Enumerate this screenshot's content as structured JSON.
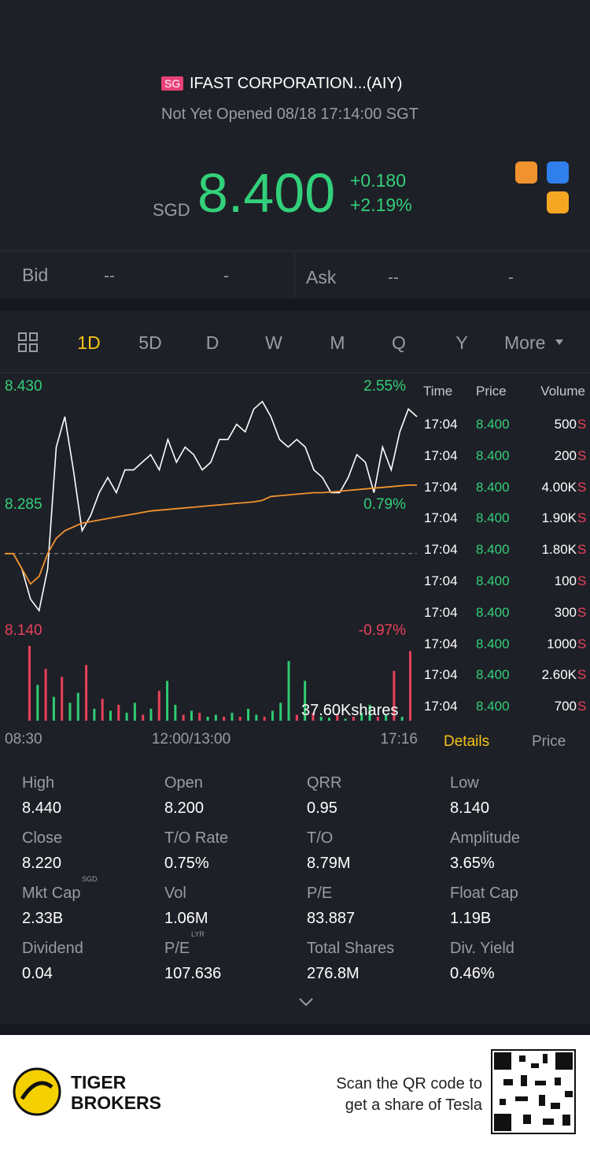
{
  "header": {
    "badge": "SG",
    "name": "IFAST CORPORATION...(AIY)",
    "status": "Not Yet Opened 08/18 17:14:00 SGT"
  },
  "quote": {
    "currency": "SGD",
    "price": "8.400",
    "change": "+0.180",
    "change_pct": "+2.19%"
  },
  "bid_ask": {
    "bid": {
      "label": "Bid",
      "price": "--",
      "size": "-"
    },
    "ask": {
      "label": "Ask",
      "price": "--",
      "size": "-"
    }
  },
  "period_tabs": [
    "1D",
    "5D",
    "D",
    "W",
    "M",
    "Q",
    "Y",
    "More"
  ],
  "chart_data": {
    "type": "line",
    "ylim": [
      8.14,
      8.43
    ],
    "yticks": [
      {
        "value": 8.43,
        "label": "8.430"
      },
      {
        "value": 8.285,
        "label": "8.285"
      },
      {
        "value": 8.14,
        "label": "8.140"
      }
    ],
    "y2lim": [
      -0.97,
      2.55
    ],
    "y2ticks": [
      {
        "value": 2.55,
        "label": "2.55%"
      },
      {
        "value": 0.79,
        "label": "0.79%"
      },
      {
        "value": -0.97,
        "label": "-0.97%"
      }
    ],
    "baseline": 8.22,
    "x_labels": [
      "08:30",
      "12:00/13:00",
      "17:16"
    ],
    "series": [
      {
        "color": "#ffffff",
        "values": [
          8.22,
          8.22,
          8.2,
          8.16,
          8.145,
          8.2,
          8.36,
          8.4,
          8.33,
          8.25,
          8.27,
          8.3,
          8.32,
          8.3,
          8.33,
          8.33,
          8.34,
          8.35,
          8.33,
          8.37,
          8.34,
          8.36,
          8.35,
          8.33,
          8.34,
          8.37,
          8.37,
          8.39,
          8.38,
          8.41,
          8.42,
          8.4,
          8.37,
          8.36,
          8.37,
          8.36,
          8.33,
          8.32,
          8.3,
          8.3,
          8.32,
          8.35,
          8.34,
          8.3,
          8.36,
          8.33,
          8.38,
          8.41,
          8.4
        ]
      },
      {
        "color": "#f0922e",
        "values": [
          8.22,
          8.22,
          8.2,
          8.18,
          8.19,
          8.22,
          8.24,
          8.25,
          8.255,
          8.26,
          8.262,
          8.264,
          8.266,
          8.268,
          8.27,
          8.272,
          8.274,
          8.276,
          8.277,
          8.278,
          8.279,
          8.28,
          8.281,
          8.282,
          8.283,
          8.284,
          8.285,
          8.286,
          8.287,
          8.288,
          8.29,
          8.295,
          8.296,
          8.297,
          8.298,
          8.299,
          8.3,
          8.3,
          8.301,
          8.302,
          8.303,
          8.304,
          8.305,
          8.306,
          8.307,
          8.308,
          8.309,
          8.31,
          8.31
        ]
      }
    ],
    "volume": {
      "max": {
        "value": 37600,
        "label": "37.60Kshares"
      },
      "values": [
        37600,
        18000,
        26000,
        12000,
        22000,
        9000,
        14000,
        28000,
        6000,
        11000,
        5000,
        8000,
        4000,
        9000,
        3000,
        6000,
        15000,
        20000,
        8000,
        3000,
        5000,
        4000,
        2000,
        3000,
        2000,
        4000,
        2000,
        6000,
        3000,
        2000,
        5000,
        9000,
        30000,
        3000,
        20000,
        4000,
        2000,
        1500,
        3000,
        1000,
        2000,
        4000,
        8000,
        2000,
        3000,
        25000,
        2000,
        35000
      ],
      "colors": [
        "#e8415a",
        "#2ecc71",
        "#e8415a",
        "#2ecc71",
        "#e8415a",
        "#2ecc71",
        "#2ecc71",
        "#e8415a",
        "#2ecc71",
        "#e8415a",
        "#2ecc71",
        "#e8415a",
        "#2ecc71",
        "#2ecc71",
        "#e8415a",
        "#2ecc71",
        "#e8415a",
        "#2ecc71",
        "#2ecc71",
        "#e8415a",
        "#2ecc71",
        "#e8415a",
        "#2ecc71",
        "#2ecc71",
        "#e8415a",
        "#2ecc71",
        "#e8415a",
        "#2ecc71",
        "#2ecc71",
        "#e8415a",
        "#2ecc71",
        "#2ecc71",
        "#2ecc71",
        "#e8415a",
        "#2ecc71",
        "#e8415a",
        "#2ecc71",
        "#2ecc71",
        "#e8415a",
        "#2ecc71",
        "#e8415a",
        "#2ecc71",
        "#2ecc71",
        "#e8415a",
        "#2ecc71",
        "#e8415a",
        "#2ecc71",
        "#e8415a"
      ]
    }
  },
  "trades": {
    "headers": [
      "Time",
      "Price",
      "Volume"
    ],
    "unit": "S",
    "rows": [
      [
        "17:04",
        "8.400",
        "500"
      ],
      [
        "17:04",
        "8.400",
        "200"
      ],
      [
        "17:04",
        "8.400",
        "4.00K"
      ],
      [
        "17:04",
        "8.400",
        "1.90K"
      ],
      [
        "17:04",
        "8.400",
        "1.80K"
      ],
      [
        "17:04",
        "8.400",
        "100"
      ],
      [
        "17:04",
        "8.400",
        "300"
      ],
      [
        "17:04",
        "8.400",
        "1000"
      ],
      [
        "17:04",
        "8.400",
        "2.60K"
      ],
      [
        "17:04",
        "8.400",
        "700"
      ]
    ]
  },
  "trade_tabs": [
    "Details",
    "Price"
  ],
  "stats": [
    {
      "label": "High",
      "value": "8.440"
    },
    {
      "label": "Open",
      "value": "8.200"
    },
    {
      "label": "QRR",
      "value": "0.95"
    },
    {
      "label": "Low",
      "value": "8.140"
    },
    {
      "label": "Close",
      "value": "8.220"
    },
    {
      "label": "T/O Rate",
      "value": "0.75%"
    },
    {
      "label": "T/O",
      "value": "8.79M"
    },
    {
      "label": "Amplitude",
      "value": "3.65%"
    },
    {
      "label": "Mkt Cap",
      "sup": "SGD",
      "value": "2.33B"
    },
    {
      "label": "Vol",
      "value": "1.06M"
    },
    {
      "label": "P/E",
      "value": "83.887"
    },
    {
      "label": "Float Cap",
      "value": "1.19B"
    },
    {
      "label": "Dividend",
      "value": "0.04"
    },
    {
      "label": "P/E",
      "sup": "LYR",
      "value": "107.636"
    },
    {
      "label": "Total Shares",
      "value": "276.8M"
    },
    {
      "label": "Div. Yield",
      "value": "0.46%"
    }
  ],
  "footer": {
    "brand": [
      "TIGER",
      "BROKERS"
    ],
    "promo": [
      "Scan the QR code to",
      "get a share of Tesla"
    ]
  }
}
